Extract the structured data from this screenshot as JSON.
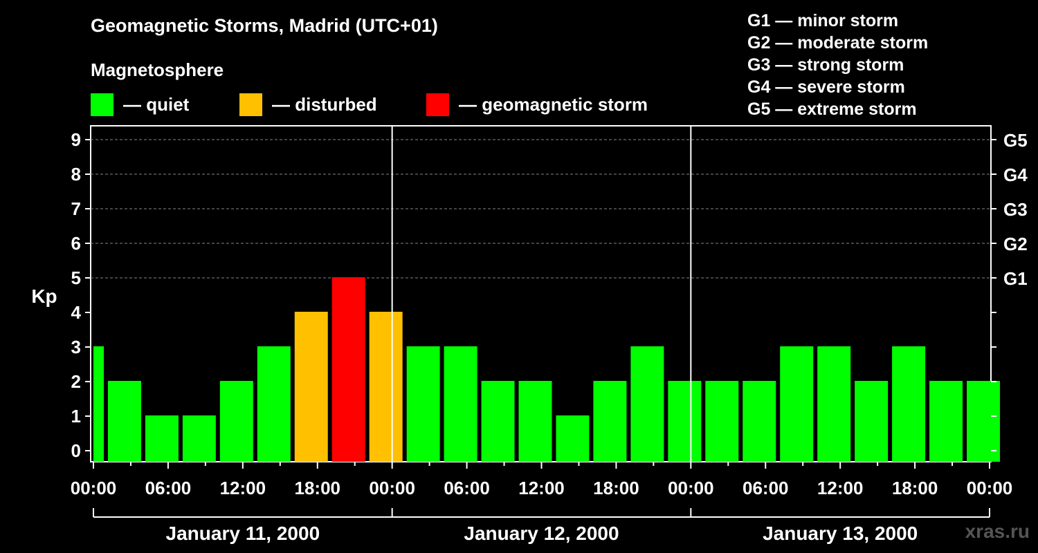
{
  "header": {
    "title": "Geomagnetic Storms, Madrid (UTC+01)",
    "subtitle": "Magnetosphere"
  },
  "legend": [
    {
      "label": "— quiet",
      "color": "#00ff00"
    },
    {
      "label": "— disturbed",
      "color": "#ffc000"
    },
    {
      "label": "— geomagnetic storm",
      "color": "#ff0000"
    }
  ],
  "g_scale": [
    "G1 — minor storm",
    "G2 — moderate storm",
    "G3 — strong storm",
    "G4 — severe storm",
    "G5 — extreme storm"
  ],
  "watermark": "xras.ru",
  "chart_data": {
    "type": "bar",
    "ylabel": "Kp",
    "ylim": [
      0,
      9
    ],
    "yticks": [
      "0",
      "1",
      "2",
      "3",
      "4",
      "5",
      "6",
      "7",
      "8",
      "9"
    ],
    "right_axis_labels": [
      {
        "kp": 5,
        "label": "G1"
      },
      {
        "kp": 6,
        "label": "G2"
      },
      {
        "kp": 7,
        "label": "G3"
      },
      {
        "kp": 8,
        "label": "G4"
      },
      {
        "kp": 9,
        "label": "G5"
      }
    ],
    "xticks": [
      "00:00",
      "06:00",
      "12:00",
      "18:00",
      "00:00",
      "06:00",
      "12:00",
      "18:00",
      "00:00",
      "06:00",
      "12:00",
      "18:00",
      "00:00"
    ],
    "days": [
      "January 11, 2000",
      "January 12, 2000",
      "January 13, 2000"
    ],
    "interval_hours": 3,
    "x_start": "January 11, 2000 00:00",
    "x_end": "January 14, 2000 00:00",
    "first_bar_partial_hours": 1,
    "values": [
      3,
      2,
      1,
      1,
      2,
      3,
      4,
      5,
      4,
      3,
      3,
      2,
      2,
      1,
      2,
      3,
      2,
      2,
      2,
      3,
      3,
      2,
      3,
      2,
      2
    ],
    "colors": {
      "quiet": "#00ff00",
      "disturbed": "#ffc000",
      "storm": "#ff0000"
    },
    "grid": true
  }
}
